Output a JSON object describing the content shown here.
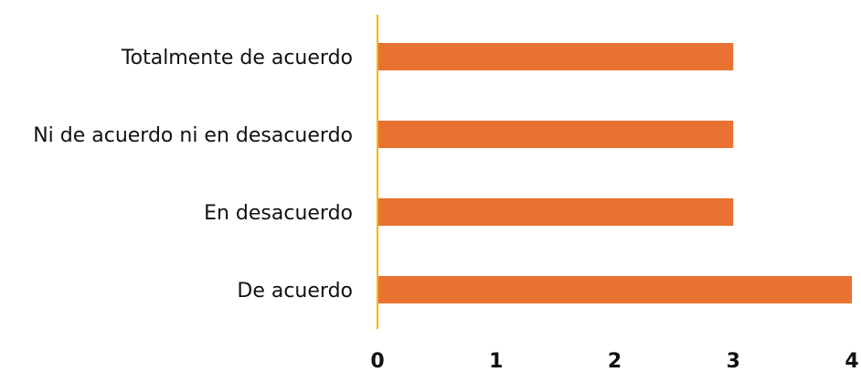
{
  "chart_data": {
    "type": "bar",
    "orientation": "horizontal",
    "categories": [
      "Totalmente de acuerdo",
      "Ni de acuerdo ni en desacuerdo",
      "En desacuerdo",
      "De acuerdo"
    ],
    "values": [
      3,
      3,
      3,
      4
    ],
    "xticks": [
      "0",
      "1",
      "2",
      "3",
      "4"
    ],
    "xlim": [
      0,
      4
    ],
    "title": "",
    "xlabel": "",
    "ylabel": "",
    "grid": false,
    "legend": "none",
    "colors": {
      "bar": "#E97132",
      "axis": "#F2B705"
    }
  }
}
